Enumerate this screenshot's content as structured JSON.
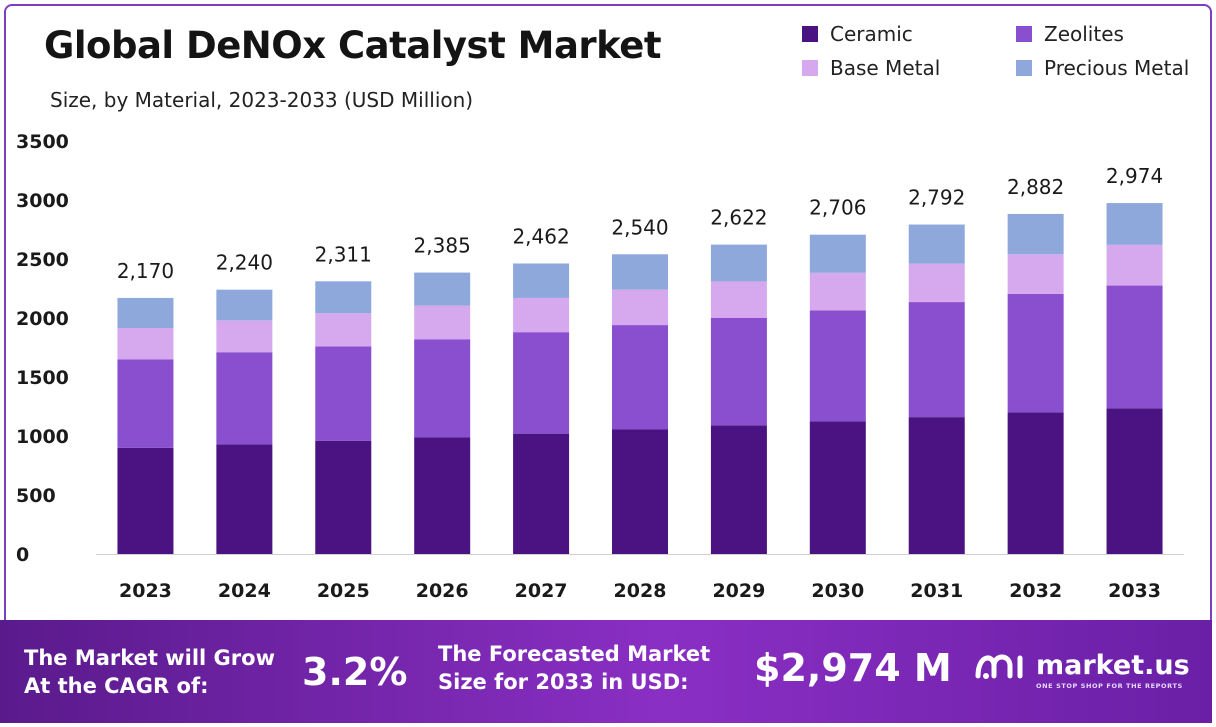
{
  "title": "Global DeNOx Catalyst Market",
  "subtitle": "Size, by Material, 2023-2033 (USD Million)",
  "colors": {
    "ceramic": "#4b1381",
    "zeolites": "#8a4fcf",
    "base_metal": "#d6a9ef",
    "precious_metal": "#8ea8dc",
    "footer": "#7a2bb8"
  },
  "chart_data": {
    "type": "bar",
    "stacked": true,
    "categories": [
      "2023",
      "2024",
      "2025",
      "2026",
      "2027",
      "2028",
      "2029",
      "2030",
      "2031",
      "2032",
      "2033"
    ],
    "series": [
      {
        "name": "Ceramic",
        "color": "#4b1381",
        "values": [
          900,
          930,
          960,
          990,
          1020,
          1055,
          1090,
          1125,
          1160,
          1200,
          1235
        ]
      },
      {
        "name": "Zeolites",
        "color": "#8a4fcf",
        "values": [
          750,
          780,
          800,
          830,
          860,
          885,
          910,
          940,
          975,
          1005,
          1040
        ]
      },
      {
        "name": "Base Metal",
        "color": "#d6a9ef",
        "values": [
          265,
          270,
          280,
          285,
          290,
          300,
          310,
          318,
          325,
          335,
          345
        ]
      },
      {
        "name": "Precious Metal",
        "color": "#8ea8dc",
        "values": [
          255,
          260,
          271,
          280,
          292,
          300,
          312,
          323,
          332,
          342,
          354
        ]
      }
    ],
    "totals": [
      "2,170",
      "2,240",
      "2,311",
      "2,385",
      "2,462",
      "2,540",
      "2,622",
      "2,706",
      "2,792",
      "2,882",
      "2,974"
    ],
    "yticks": [
      "0",
      "500",
      "1000",
      "1500",
      "2000",
      "2500",
      "3000",
      "3500"
    ],
    "ylim": [
      0,
      3500
    ],
    "grid": false,
    "legend_position": "top-right"
  },
  "footer": {
    "cagr_label_line1": "The Market will Grow",
    "cagr_label_line2": "At the CAGR of:",
    "cagr_value": "3.2%",
    "forecast_label_line1": "The Forecasted Market",
    "forecast_label_line2": "Size for 2033 in USD:",
    "forecast_value": "$2,974 M",
    "brand_name": "market.us",
    "brand_icon": "market-us-logo-icon",
    "brand_tagline": "ONE STOP SHOP FOR THE REPORTS"
  }
}
